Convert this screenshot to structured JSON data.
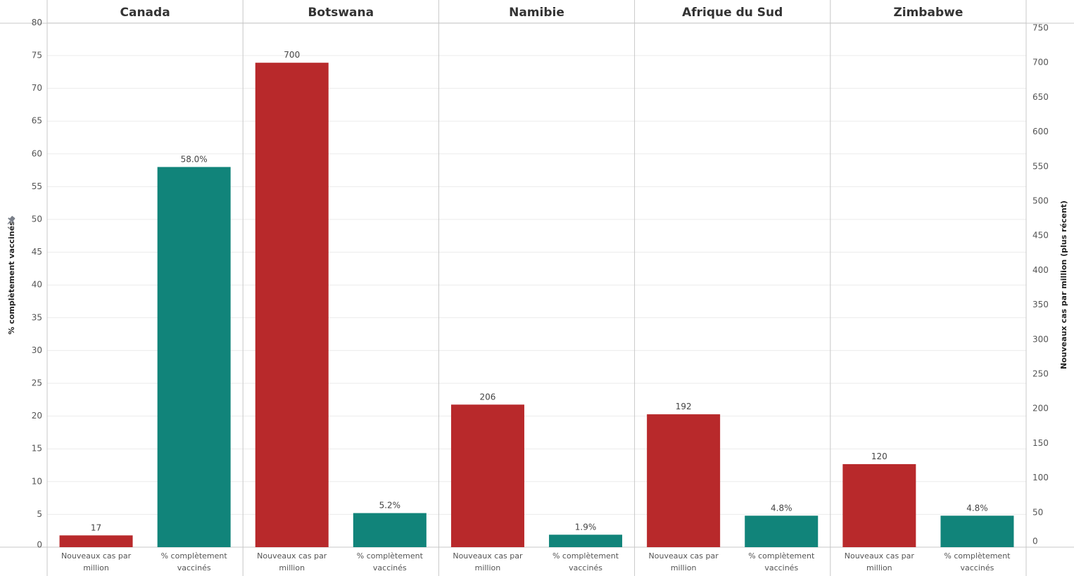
{
  "colors": {
    "cases": "#B8292B",
    "vaccinated": "#11847A",
    "grid": "#EBEBEB",
    "divider": "#C8C8C8",
    "pin": "#7A7F89"
  },
  "chart_data": {
    "type": "bar",
    "left_axis": {
      "title": "% complètement vaccinés",
      "range": [
        0,
        80
      ],
      "ticks": [
        0,
        5,
        10,
        15,
        20,
        25,
        30,
        35,
        40,
        45,
        50,
        55,
        60,
        65,
        70,
        75,
        80
      ]
    },
    "right_axis": {
      "title": "Nouveaux cas par million (plus récent)",
      "range": [
        0,
        750
      ],
      "ticks": [
        0,
        50,
        100,
        150,
        200,
        250,
        300,
        350,
        400,
        450,
        500,
        550,
        600,
        650,
        700,
        750
      ]
    },
    "categories": [
      "Nouveaux cas par million",
      "% complètement vaccinés"
    ],
    "category_lines": [
      [
        "Nouveaux cas par",
        "million"
      ],
      [
        "% complètement",
        "vaccinés"
      ]
    ],
    "panels": [
      {
        "country": "Canada",
        "new_cases_per_million": 17,
        "cases_label": "17",
        "pct_vaccinated": 58.0,
        "pct_label": "58.0%"
      },
      {
        "country": "Botswana",
        "new_cases_per_million": 700,
        "cases_label": "700",
        "pct_vaccinated": 5.2,
        "pct_label": "5.2%"
      },
      {
        "country": "Namibie",
        "new_cases_per_million": 206,
        "cases_label": "206",
        "pct_vaccinated": 1.9,
        "pct_label": "1.9%"
      },
      {
        "country": "Afrique du Sud",
        "new_cases_per_million": 192,
        "cases_label": "192",
        "pct_vaccinated": 4.8,
        "pct_label": "4.8%"
      },
      {
        "country": "Zimbabwe",
        "new_cases_per_million": 120,
        "cases_label": "120",
        "pct_vaccinated": 4.8,
        "pct_label": "4.8%"
      }
    ],
    "grid": true,
    "legend": "none"
  }
}
